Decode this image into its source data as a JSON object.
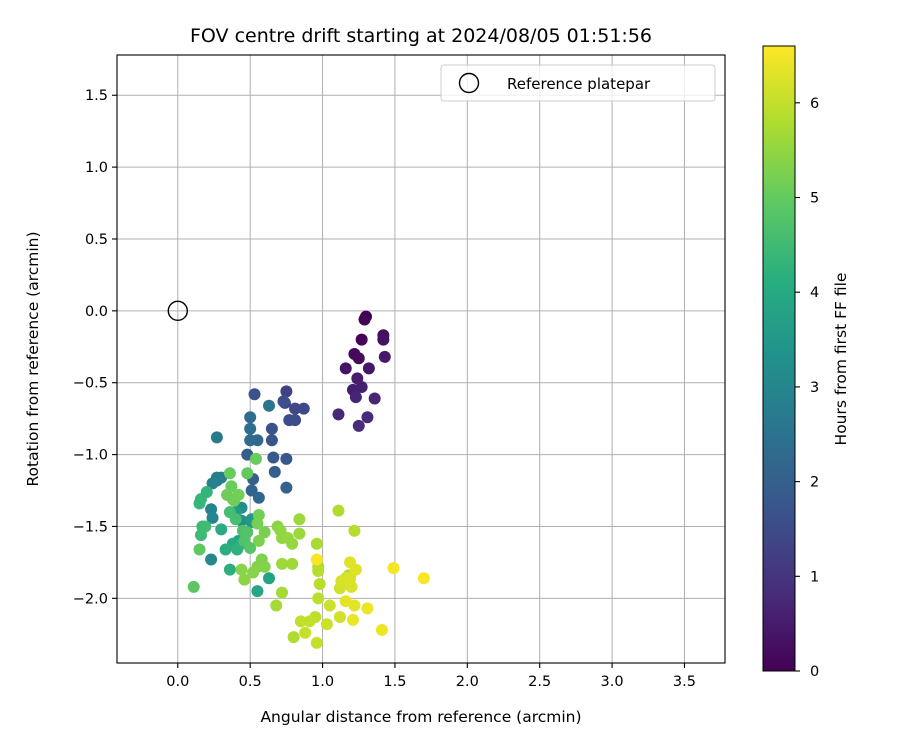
{
  "chart_data": {
    "type": "scatter",
    "title": "FOV centre drift starting at 2024/08/05 01:51:56",
    "xlabel": "Angular distance from reference (arcmin)",
    "ylabel": "Rotation from reference (arcmin)",
    "xlim": [
      -0.42,
      3.78
    ],
    "ylim": [
      -2.45,
      1.78
    ],
    "xticks": [
      "0.0",
      "0.5",
      "1.0",
      "1.5",
      "2.0",
      "2.5",
      "3.0",
      "3.5"
    ],
    "yticks": [
      "−2.0",
      "−1.5",
      "−1.0",
      "−0.5",
      "0.0",
      "0.5",
      "1.0",
      "1.5"
    ],
    "grid": true,
    "legend": {
      "position": "top-right",
      "entries": [
        "Reference platepar"
      ]
    },
    "reference_point": {
      "x": 0.0,
      "y": 0.0,
      "name": "Reference platepar"
    },
    "colorbar": {
      "label": "Hours from first FF file",
      "colormap": "viridis",
      "range": [
        0,
        6.6
      ],
      "ticks": [
        "0",
        "1",
        "2",
        "3",
        "4",
        "5",
        "6"
      ]
    },
    "points": [
      [
        1.3,
        -0.04,
        0.0
      ],
      [
        1.29,
        -0.06,
        0.05
      ],
      [
        1.27,
        -0.2,
        0.1
      ],
      [
        1.22,
        -0.3,
        0.15
      ],
      [
        1.25,
        -0.33,
        0.2
      ],
      [
        1.42,
        -0.17,
        0.25
      ],
      [
        1.42,
        -0.2,
        0.3
      ],
      [
        1.16,
        -0.4,
        0.35
      ],
      [
        1.32,
        -0.4,
        0.4
      ],
      [
        1.43,
        -0.32,
        0.45
      ],
      [
        1.24,
        -0.47,
        0.5
      ],
      [
        1.21,
        -0.55,
        0.55
      ],
      [
        1.27,
        -0.53,
        0.6
      ],
      [
        1.23,
        -0.6,
        0.65
      ],
      [
        1.36,
        -0.61,
        0.7
      ],
      [
        1.11,
        -0.72,
        0.75
      ],
      [
        1.31,
        -0.74,
        0.8
      ],
      [
        1.25,
        -0.8,
        0.85
      ],
      [
        0.75,
        -0.56,
        1.3
      ],
      [
        0.74,
        -0.64,
        1.35
      ],
      [
        0.81,
        -0.68,
        1.4
      ],
      [
        0.87,
        -0.68,
        1.45
      ],
      [
        0.77,
        -0.76,
        1.5
      ],
      [
        0.81,
        -0.76,
        1.55
      ],
      [
        0.73,
        -0.63,
        1.6
      ],
      [
        0.53,
        -0.58,
        1.65
      ],
      [
        0.65,
        -0.82,
        1.7
      ],
      [
        0.65,
        -0.9,
        1.75
      ],
      [
        0.75,
        -1.03,
        1.8
      ],
      [
        0.66,
        -1.02,
        1.85
      ],
      [
        0.48,
        -1.0,
        1.9
      ],
      [
        0.67,
        -1.12,
        1.95
      ],
      [
        0.52,
        -1.17,
        2.0
      ],
      [
        0.75,
        -1.23,
        2.05
      ],
      [
        0.51,
        -1.25,
        2.1
      ],
      [
        0.56,
        -1.3,
        2.15
      ],
      [
        0.55,
        -0.9,
        2.2
      ],
      [
        0.5,
        -0.9,
        2.25
      ],
      [
        0.5,
        -0.74,
        2.3
      ],
      [
        0.5,
        -0.82,
        2.35
      ],
      [
        0.63,
        -0.66,
        2.6
      ],
      [
        0.27,
        -0.88,
        2.7
      ],
      [
        0.27,
        -1.16,
        2.75
      ],
      [
        0.3,
        -1.16,
        2.8
      ],
      [
        0.27,
        -1.18,
        2.85
      ],
      [
        0.24,
        -1.2,
        2.9
      ],
      [
        0.23,
        -1.38,
        2.95
      ],
      [
        0.24,
        -1.44,
        3.0
      ],
      [
        0.23,
        -1.73,
        3.1
      ],
      [
        0.44,
        -1.37,
        3.2
      ],
      [
        0.44,
        -1.46,
        3.3
      ],
      [
        0.51,
        -1.47,
        3.4
      ],
      [
        0.51,
        -1.45,
        3.5
      ],
      [
        0.4,
        -1.4,
        3.6
      ],
      [
        0.42,
        -1.6,
        3.7
      ],
      [
        0.63,
        -1.86,
        3.8
      ],
      [
        0.55,
        -1.95,
        3.9
      ],
      [
        0.38,
        -1.62,
        4.0
      ],
      [
        0.3,
        -1.52,
        4.05
      ],
      [
        0.33,
        -1.66,
        4.1
      ],
      [
        0.36,
        -1.8,
        4.15
      ],
      [
        0.41,
        -1.66,
        4.2
      ],
      [
        0.44,
        -1.62,
        4.25
      ],
      [
        0.2,
        -1.26,
        4.3
      ],
      [
        0.16,
        -1.31,
        4.35
      ],
      [
        0.15,
        -1.34,
        4.4
      ],
      [
        0.17,
        -1.5,
        4.45
      ],
      [
        0.16,
        -1.56,
        4.5
      ],
      [
        0.19,
        -1.5,
        4.55
      ],
      [
        0.36,
        -1.4,
        4.6
      ],
      [
        0.4,
        -1.45,
        4.65
      ],
      [
        0.45,
        -1.53,
        4.7
      ],
      [
        0.46,
        -1.6,
        4.75
      ],
      [
        0.48,
        -1.54,
        4.8
      ],
      [
        0.5,
        -1.65,
        4.85
      ],
      [
        0.11,
        -1.92,
        4.9
      ],
      [
        0.15,
        -1.66,
        4.95
      ],
      [
        0.48,
        -1.13,
        5.0
      ],
      [
        0.36,
        -1.13,
        5.05
      ],
      [
        0.54,
        -1.03,
        5.05
      ],
      [
        0.37,
        -1.22,
        5.1
      ],
      [
        0.38,
        -1.31,
        5.1
      ],
      [
        0.34,
        -1.28,
        5.15
      ],
      [
        0.39,
        -1.32,
        5.15
      ],
      [
        0.42,
        -1.28,
        5.2
      ],
      [
        0.56,
        -1.42,
        5.2
      ],
      [
        0.55,
        -1.48,
        5.25
      ],
      [
        0.6,
        -1.54,
        5.25
      ],
      [
        0.56,
        -1.6,
        5.3
      ],
      [
        0.58,
        -1.73,
        5.3
      ],
      [
        0.55,
        -1.78,
        5.35
      ],
      [
        0.6,
        -1.78,
        5.35
      ],
      [
        0.52,
        -1.82,
        5.4
      ],
      [
        0.44,
        -1.8,
        5.4
      ],
      [
        0.46,
        -1.87,
        5.45
      ],
      [
        0.69,
        -1.5,
        5.45
      ],
      [
        0.71,
        -1.53,
        5.5
      ],
      [
        0.72,
        -1.58,
        5.5
      ],
      [
        0.76,
        -1.58,
        5.55
      ],
      [
        0.79,
        -1.62,
        5.55
      ],
      [
        0.84,
        -1.45,
        5.6
      ],
      [
        0.84,
        -1.55,
        5.6
      ],
      [
        0.72,
        -1.76,
        5.65
      ],
      [
        0.79,
        -1.76,
        5.65
      ],
      [
        0.72,
        -1.96,
        5.7
      ],
      [
        0.68,
        -2.05,
        5.7
      ],
      [
        0.96,
        -1.62,
        5.75
      ],
      [
        0.97,
        -1.78,
        5.75
      ],
      [
        0.8,
        -2.27,
        5.8
      ],
      [
        1.11,
        -1.39,
        5.8
      ],
      [
        1.18,
        -1.84,
        5.85
      ],
      [
        1.22,
        -1.53,
        5.85
      ],
      [
        0.97,
        -1.81,
        5.9
      ],
      [
        0.98,
        -1.9,
        5.9
      ],
      [
        0.97,
        -2.0,
        5.95
      ],
      [
        0.95,
        -2.13,
        5.95
      ],
      [
        0.91,
        -2.16,
        6.0
      ],
      [
        0.85,
        -2.16,
        6.0
      ],
      [
        0.88,
        -2.24,
        6.05
      ],
      [
        0.96,
        -2.31,
        6.05
      ],
      [
        1.05,
        -2.05,
        6.1
      ],
      [
        1.03,
        -2.18,
        6.1
      ],
      [
        1.12,
        -2.13,
        6.15
      ],
      [
        1.12,
        -1.93,
        6.15
      ],
      [
        1.13,
        -1.88,
        6.2
      ],
      [
        1.16,
        -1.86,
        6.2
      ],
      [
        1.19,
        -1.86,
        6.25
      ],
      [
        1.2,
        -1.92,
        6.25
      ],
      [
        1.19,
        -1.75,
        6.3
      ],
      [
        1.23,
        -1.8,
        6.3
      ],
      [
        1.16,
        -2.02,
        6.35
      ],
      [
        1.22,
        -2.05,
        6.35
      ],
      [
        1.21,
        -2.15,
        6.4
      ],
      [
        1.31,
        -2.07,
        6.4
      ],
      [
        1.41,
        -2.22,
        6.45
      ],
      [
        1.49,
        -1.79,
        6.5
      ],
      [
        1.7,
        -1.86,
        6.55
      ],
      [
        0.96,
        -1.73,
        6.55
      ]
    ]
  }
}
